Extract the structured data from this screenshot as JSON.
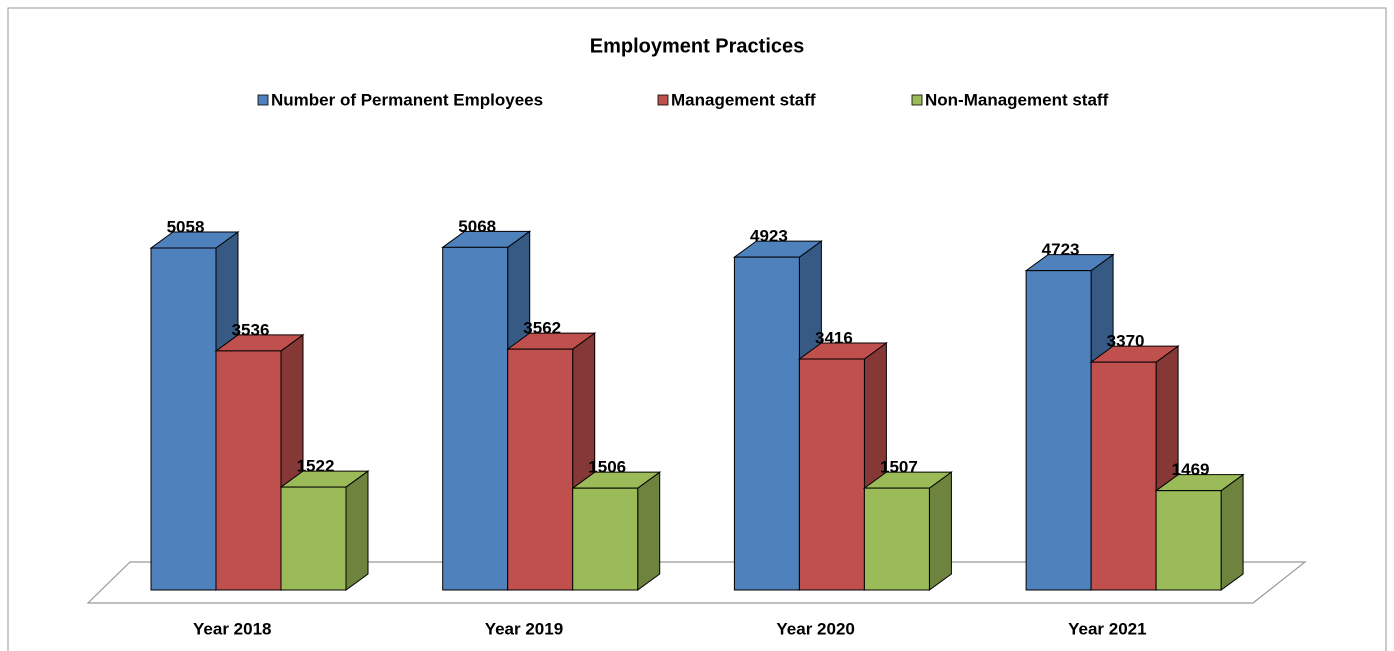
{
  "chart_data": {
    "type": "bar3d",
    "title": "Employment Practices",
    "categories": [
      "Year 2018",
      "Year 2019",
      "Year 2020",
      "Year 2021"
    ],
    "series": [
      {
        "name": "Number of Permanent Employees",
        "color": "#4f81bd",
        "values": [
          5058,
          5068,
          4923,
          4723
        ]
      },
      {
        "name": "Management staff",
        "color": "#c0504d",
        "values": [
          3536,
          3562,
          3416,
          3370
        ]
      },
      {
        "name": "Non-Management staff",
        "color": "#9bbb59",
        "values": [
          1522,
          1506,
          1507,
          1469
        ]
      }
    ],
    "legend": "top"
  }
}
